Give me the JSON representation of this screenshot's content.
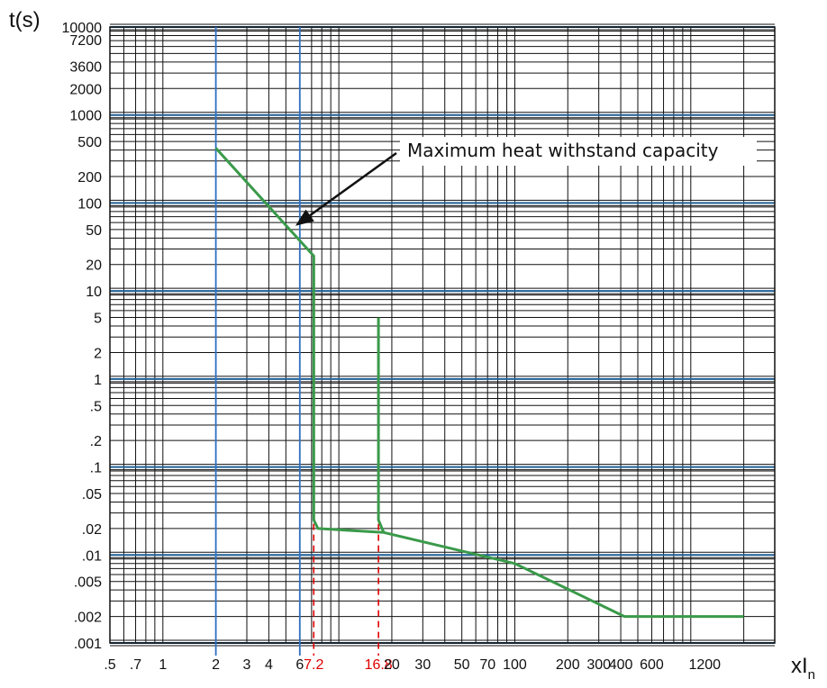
{
  "chart_data": {
    "type": "line",
    "xscale": "log",
    "yscale": "log",
    "grid": true,
    "xlim": [
      0.5,
      3000
    ],
    "ylim": [
      0.001,
      10000
    ],
    "ylabel": "t(s)",
    "xlabel": {
      "main": "xI",
      "sub": "n"
    },
    "x_ticks": [
      {
        "v": 0.5,
        "label": ".5"
      },
      {
        "v": 0.7,
        "label": ".7"
      },
      {
        "v": 1,
        "label": "1"
      },
      {
        "v": 2,
        "label": "2"
      },
      {
        "v": 3,
        "label": "3"
      },
      {
        "v": 4,
        "label": "4"
      },
      {
        "v": 6,
        "label": "6"
      },
      {
        "v": 7.2,
        "label": "7.2",
        "highlight": true
      },
      {
        "v": 16.8,
        "label": "16.8",
        "highlight": true
      },
      {
        "v": 20,
        "label": "20"
      },
      {
        "v": 30,
        "label": "30"
      },
      {
        "v": 50,
        "label": "50"
      },
      {
        "v": 70,
        "label": "70"
      },
      {
        "v": 100,
        "label": "100"
      },
      {
        "v": 200,
        "label": "200"
      },
      {
        "v": 300,
        "label": "300"
      },
      {
        "v": 400,
        "label": "400"
      },
      {
        "v": 600,
        "label": "600"
      },
      {
        "v": 1200,
        "label": "1200"
      }
    ],
    "y_ticks": [
      {
        "v": 10000,
        "label": "10000"
      },
      {
        "v": 7200,
        "label": "7200"
      },
      {
        "v": 3600,
        "label": "3600"
      },
      {
        "v": 2000,
        "label": "2000"
      },
      {
        "v": 1000,
        "label": "1000"
      },
      {
        "v": 500,
        "label": "500"
      },
      {
        "v": 200,
        "label": "200"
      },
      {
        "v": 100,
        "label": "100"
      },
      {
        "v": 50,
        "label": "50"
      },
      {
        "v": 20,
        "label": "20"
      },
      {
        "v": 10,
        "label": "10"
      },
      {
        "v": 5,
        "label": "5"
      },
      {
        "v": 2,
        "label": "2"
      },
      {
        "v": 1,
        "label": "1"
      },
      {
        "v": 0.5,
        "label": ".5"
      },
      {
        "v": 0.2,
        "label": ".2"
      },
      {
        "v": 0.1,
        "label": ".1"
      },
      {
        "v": 0.05,
        "label": ".05"
      },
      {
        "v": 0.02,
        "label": ".02"
      },
      {
        "v": 0.01,
        "label": ".01"
      },
      {
        "v": 0.005,
        "label": ".005"
      },
      {
        "v": 0.002,
        "label": ".002"
      },
      {
        "v": 0.001,
        "label": ".001"
      }
    ],
    "highlight_x_lines": [
      2,
      6
    ],
    "series": [
      {
        "color": "#3a9a4a",
        "points": [
          [
            2,
            420
          ],
          [
            7.2,
            25
          ],
          [
            7.2,
            0.025
          ],
          [
            7.6,
            0.02
          ],
          [
            18,
            0.018
          ],
          [
            100,
            0.008
          ],
          [
            420,
            0.002
          ],
          [
            2000,
            0.002
          ]
        ]
      },
      {
        "color": "#3a9a4a",
        "points": [
          [
            16.8,
            5
          ],
          [
            16.8,
            0.025
          ],
          [
            18,
            0.018
          ]
        ]
      }
    ],
    "dashed_markers": [
      {
        "x": 7.2,
        "y_from": 0.001,
        "y_to": 0.03,
        "color": "#e00000"
      },
      {
        "x": 16.8,
        "y_from": 0.001,
        "y_to": 0.03,
        "color": "#e00000"
      }
    ],
    "annotation": {
      "text": "Maximum heat withstand capacity",
      "arrow_to": [
        5.8,
        55
      ]
    },
    "colors": {
      "grid": "#111111",
      "major_grid": "#1f5f95",
      "highlight_line": "#2f6fc0",
      "curve": "#3a9a4a",
      "marker": "#e00000"
    }
  }
}
